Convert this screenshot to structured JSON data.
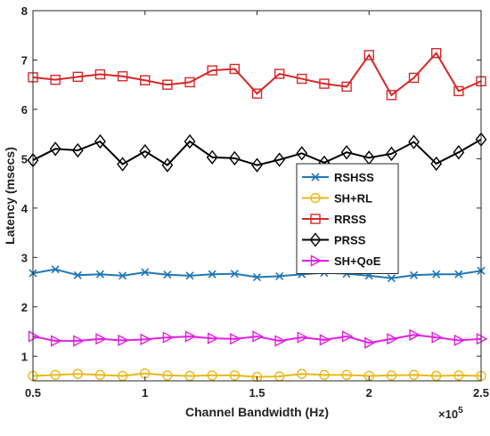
{
  "chart_data": {
    "type": "line",
    "xlabel": "Channel Bandwidth (Hz)",
    "ylabel": "Latency (msecs)",
    "x_multiplier_label": "×10",
    "x_multiplier_exp": "5",
    "xlim": [
      0.5,
      2.5
    ],
    "ylim": [
      0.5,
      8
    ],
    "x_ticks": [
      "0.5",
      "1",
      "1.5",
      "2",
      "2.5"
    ],
    "y_ticks": [
      "1",
      "2",
      "3",
      "4",
      "5",
      "6",
      "7",
      "8"
    ],
    "legend_position": "center-right",
    "x": [
      0.5,
      0.6,
      0.7,
      0.8,
      0.9,
      1.0,
      1.1,
      1.2,
      1.3,
      1.4,
      1.5,
      1.6,
      1.7,
      1.8,
      1.9,
      2.0,
      2.1,
      2.2,
      2.3,
      2.4,
      2.5
    ],
    "series": [
      {
        "name": "RSHSS",
        "color": "#1f77b4",
        "marker": "x",
        "values": [
          2.68,
          2.76,
          2.64,
          2.66,
          2.63,
          2.7,
          2.65,
          2.63,
          2.66,
          2.67,
          2.6,
          2.62,
          2.66,
          2.69,
          2.67,
          2.63,
          2.58,
          2.64,
          2.66,
          2.66,
          2.73
        ]
      },
      {
        "name": "SH+RL",
        "color": "#e8b81a",
        "marker": "circle",
        "values": [
          0.6,
          0.62,
          0.64,
          0.62,
          0.6,
          0.65,
          0.61,
          0.6,
          0.61,
          0.61,
          0.58,
          0.59,
          0.64,
          0.62,
          0.62,
          0.6,
          0.61,
          0.62,
          0.6,
          0.61,
          0.6
        ]
      },
      {
        "name": "RRSS",
        "color": "#d62728",
        "marker": "square",
        "values": [
          6.65,
          6.6,
          6.66,
          6.71,
          6.67,
          6.59,
          6.5,
          6.55,
          6.79,
          6.82,
          6.32,
          6.72,
          6.62,
          6.52,
          6.46,
          7.1,
          6.29,
          6.64,
          7.14,
          6.37,
          6.57
        ]
      },
      {
        "name": "PRSS",
        "color": "#000000",
        "marker": "diamond",
        "values": [
          4.97,
          5.2,
          5.17,
          5.35,
          4.89,
          5.15,
          4.87,
          5.35,
          5.03,
          5.01,
          4.87,
          4.98,
          5.11,
          4.92,
          5.13,
          5.02,
          5.1,
          5.34,
          4.9,
          5.13,
          5.39
        ]
      },
      {
        "name": "SH+QoE",
        "color": "#e020e0",
        "marker": "triangle-right",
        "values": [
          1.4,
          1.31,
          1.31,
          1.35,
          1.32,
          1.34,
          1.38,
          1.4,
          1.36,
          1.35,
          1.4,
          1.31,
          1.38,
          1.33,
          1.4,
          1.27,
          1.35,
          1.43,
          1.38,
          1.32,
          1.35
        ]
      }
    ]
  }
}
